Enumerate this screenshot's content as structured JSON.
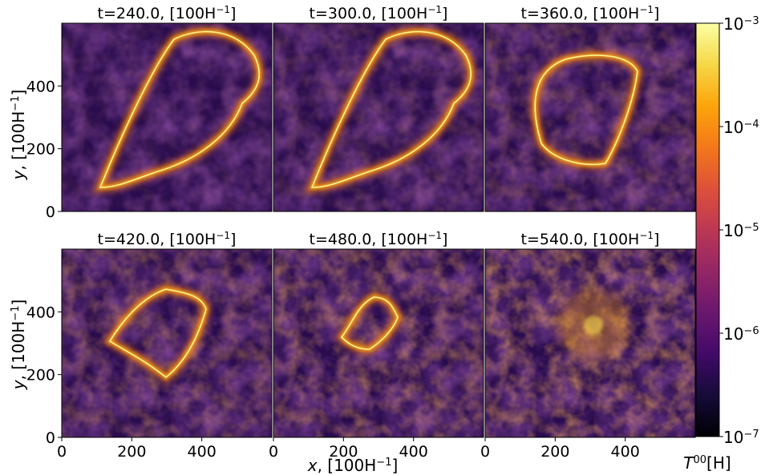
{
  "chart_data": {
    "type": "heatmap",
    "title": "",
    "scale": "log",
    "colormap": "inferno",
    "grid": false,
    "xlabel_var": "x",
    "xlabel_unit": ", [100H",
    "ylabel_var": "y",
    "ylabel_unit": ", [100H",
    "unit_sup": "−1",
    "unit_close": "]",
    "xlim": [
      0,
      600
    ],
    "ylim": [
      0,
      600
    ],
    "xticks": [
      "0",
      "200",
      "400"
    ],
    "yticks": [
      "0",
      "200",
      "400"
    ],
    "panels": [
      {
        "title": "t=240.0, [100H",
        "t": 240.0,
        "loop": "large"
      },
      {
        "title": "t=300.0, [100H",
        "t": 300.0,
        "loop": "large"
      },
      {
        "title": "t=360.0, [100H",
        "t": 360.0,
        "loop": "medium"
      },
      {
        "title": "t=420.0, [100H",
        "t": 420.0,
        "loop": "medium-diffuse"
      },
      {
        "title": "t=480.0, [100H",
        "t": 480.0,
        "loop": "small-diffuse"
      },
      {
        "title": "t=540.0, [100H",
        "t": 540.0,
        "loop": "collapsed"
      }
    ],
    "title_sup": "−1",
    "title_close": "]",
    "colorbar": {
      "label_T": "T",
      "label_sup": "00",
      "label_unit": "[H]",
      "range": [
        1e-07,
        0.001
      ],
      "ticks": [
        {
          "base": "10",
          "exp": "−3"
        },
        {
          "base": "10",
          "exp": "−4"
        },
        {
          "base": "10",
          "exp": "−5"
        },
        {
          "base": "10",
          "exp": "−6"
        },
        {
          "base": "10",
          "exp": "−7"
        }
      ]
    }
  }
}
